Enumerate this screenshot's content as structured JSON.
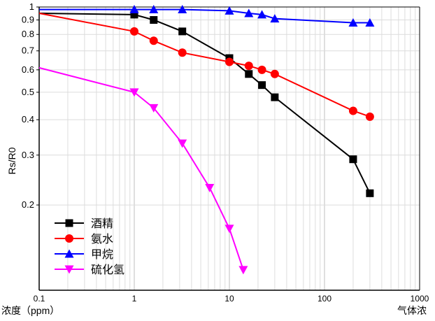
{
  "chart_data": {
    "type": "line",
    "title": "",
    "ylabel": "Rs/R0",
    "xlabel": "",
    "x_scale": "log",
    "y_scale": "log",
    "xlim": [
      0.1,
      1000
    ],
    "ylim": [
      0.1,
      1
    ],
    "x_ticks": [
      "0.1",
      "1",
      "10",
      "100",
      "1000"
    ],
    "y_ticks": [
      "1",
      "0.9",
      "0.8",
      "0.7",
      "0.6",
      "0.5",
      "0.4",
      "0.3",
      "0.2"
    ],
    "grid": true,
    "legend_position": "bottom-left",
    "bottom_fragments": [
      "浓度（ppm）",
      "气体浓"
    ],
    "series": [
      {
        "name": "酒精",
        "color": "#000000",
        "marker": "square",
        "points": [
          [
            0.1,
            0.95
          ],
          [
            1,
            0.94
          ],
          [
            1.6,
            0.9
          ],
          [
            3.2,
            0.82
          ],
          [
            10,
            0.66
          ],
          [
            16,
            0.58
          ],
          [
            22,
            0.53
          ],
          [
            30,
            0.48
          ],
          [
            200,
            0.29
          ],
          [
            300,
            0.22
          ]
        ]
      },
      {
        "name": "氨水",
        "color": "#ff0000",
        "marker": "circle",
        "points": [
          [
            0.1,
            0.95
          ],
          [
            1,
            0.82
          ],
          [
            1.6,
            0.76
          ],
          [
            3.2,
            0.69
          ],
          [
            10,
            0.64
          ],
          [
            16,
            0.62
          ],
          [
            22,
            0.6
          ],
          [
            30,
            0.58
          ],
          [
            200,
            0.43
          ],
          [
            300,
            0.41
          ]
        ]
      },
      {
        "name": "甲烷",
        "color": "#0000ff",
        "marker": "triangle-up",
        "points": [
          [
            0.1,
            0.98
          ],
          [
            1,
            0.98
          ],
          [
            1.6,
            0.98
          ],
          [
            3.2,
            0.98
          ],
          [
            10,
            0.97
          ],
          [
            16,
            0.95
          ],
          [
            22,
            0.94
          ],
          [
            30,
            0.91
          ],
          [
            200,
            0.88
          ],
          [
            300,
            0.88
          ]
        ]
      },
      {
        "name": "硫化氢",
        "color": "#ff00ff",
        "marker": "triangle-down",
        "points": [
          [
            0.1,
            0.61
          ],
          [
            1,
            0.5
          ],
          [
            1.6,
            0.44
          ],
          [
            3.2,
            0.33
          ],
          [
            6.2,
            0.23
          ],
          [
            10,
            0.165
          ],
          [
            14,
            0.118
          ]
        ]
      }
    ]
  }
}
